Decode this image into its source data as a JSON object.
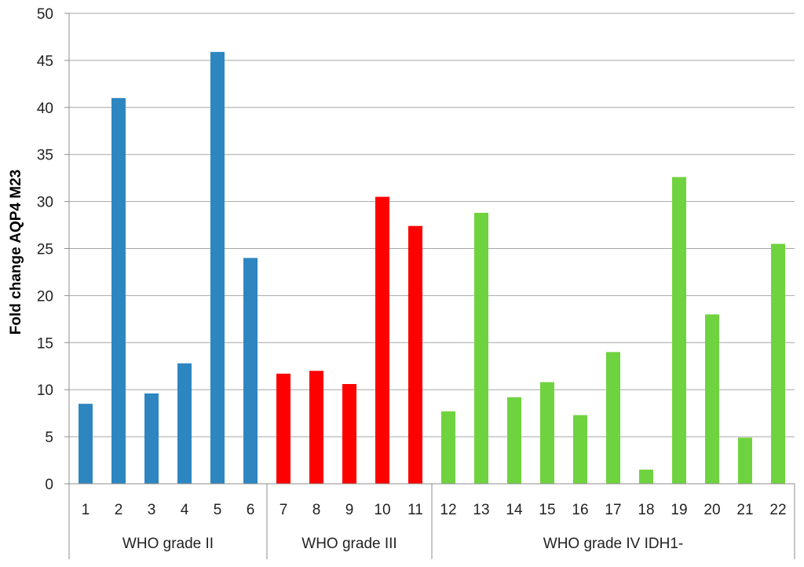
{
  "chart_data": {
    "type": "bar",
    "title": "",
    "xlabel": "",
    "ylabel": "Fold change AQP4 M23",
    "ylim": [
      0,
      50
    ],
    "yticks": [
      0,
      5,
      10,
      15,
      20,
      25,
      30,
      35,
      40,
      45,
      50
    ],
    "grid": true,
    "legend": "none",
    "categories": [
      "1",
      "2",
      "3",
      "4",
      "5",
      "6",
      "7",
      "8",
      "9",
      "10",
      "11",
      "12",
      "13",
      "14",
      "15",
      "16",
      "17",
      "18",
      "19",
      "20",
      "21",
      "22"
    ],
    "values": [
      8.5,
      41.0,
      9.6,
      12.8,
      45.9,
      24.0,
      11.7,
      12.0,
      10.6,
      30.5,
      27.4,
      7.7,
      28.8,
      9.2,
      10.8,
      7.3,
      14.0,
      1.5,
      32.6,
      18.0,
      4.9,
      25.5
    ],
    "groups": [
      {
        "label": "WHO grade II",
        "start": 0,
        "end": 5,
        "color": "#2e86c1"
      },
      {
        "label": "WHO grade III",
        "start": 6,
        "end": 10,
        "color": "#ff0000"
      },
      {
        "label": "WHO grade IV IDH1-",
        "start": 11,
        "end": 21,
        "color": "#6fd33f"
      }
    ]
  }
}
